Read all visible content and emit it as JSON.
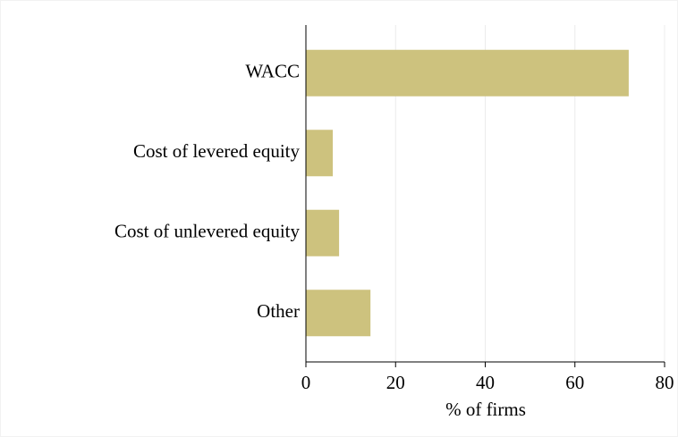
{
  "chart_data": {
    "type": "barh",
    "categories": [
      "WACC",
      "Cost of levered equity",
      "Cost of unlevered equity",
      "Other"
    ],
    "values": [
      72,
      6,
      7.4,
      14.4
    ],
    "color": "#cdc27e",
    "xlabel": "% of firms",
    "xlim": [
      0,
      80
    ],
    "xticks": [
      0,
      20,
      40,
      60,
      80
    ],
    "grid": true
  }
}
